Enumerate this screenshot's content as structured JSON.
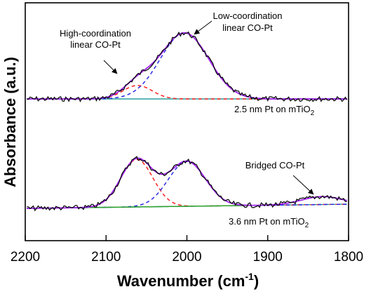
{
  "chart_data": {
    "type": "line",
    "xlabel_main": "Wavenumber (cm",
    "xlabel_sup": "-1",
    "xlabel_end": ")",
    "ylabel": "Absorbance (a.u.)",
    "xlim": [
      2200,
      1800
    ],
    "x_ticks": [
      "2200",
      "2100",
      "2000",
      "1900",
      "1800"
    ],
    "x_tick_values": [
      2200,
      2100,
      2000,
      1900,
      1800
    ],
    "panels": [
      {
        "sample_label_main": "2.5 nm Pt on mTiO",
        "sample_label_sub": "2",
        "annotations": [
          {
            "text_lines": [
              "High-coordination",
              "linear CO-Pt"
            ]
          },
          {
            "text_lines": [
              "Low-coordination",
              "linear CO-Pt"
            ]
          }
        ],
        "baseline": 0.0,
        "peaks": [
          {
            "role": "high-coordination",
            "center": 2061,
            "amplitude": 0.2,
            "width": 18,
            "color": "#ff2020"
          },
          {
            "role": "low-coordination",
            "center": 2003,
            "amplitude": 0.98,
            "width": 30,
            "color": "#2a2ae0"
          }
        ]
      },
      {
        "sample_label_main": "3.6 nm Pt on mTiO",
        "sample_label_sub": "2",
        "annotations": [
          {
            "text_lines": [
              "Bridged CO-Pt"
            ]
          }
        ],
        "baseline": 0.0,
        "peaks": [
          {
            "role": "high-coordination",
            "center": 2062,
            "amplitude": 0.72,
            "width": 20,
            "color": "#ff2020"
          },
          {
            "role": "low-coordination",
            "center": 2000,
            "amplitude": 0.68,
            "width": 23,
            "color": "#2a2ae0"
          },
          {
            "role": "bridged",
            "center": 1833,
            "amplitude": 0.12,
            "width": 25,
            "color": "#2aa02a"
          }
        ]
      }
    ],
    "colors": {
      "measured": "#000000",
      "fit_total": "#a020f0",
      "baseline": "#2aa0a0",
      "high_coordination": "#ff2020",
      "low_coordination": "#2a2ae0",
      "bridged": "#2aa02a"
    }
  }
}
